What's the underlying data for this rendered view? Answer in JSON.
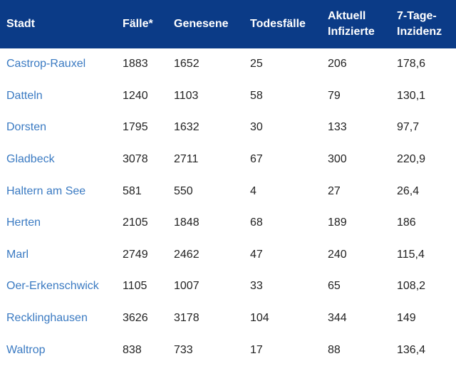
{
  "table": {
    "headers": [
      "Stadt",
      "Fälle*",
      "Genesene",
      "Todesfälle",
      "Aktuell Infizierte",
      "7-Tage-Inzidenz"
    ],
    "rows": [
      [
        "Castrop-Rauxel",
        "1883",
        "1652",
        "25",
        "206",
        "178,6"
      ],
      [
        "Datteln",
        "1240",
        "1103",
        "58",
        "79",
        "130,1"
      ],
      [
        "Dorsten",
        "1795",
        "1632",
        "30",
        "133",
        "97,7"
      ],
      [
        "Gladbeck",
        "3078",
        "2711",
        "67",
        "300",
        "220,9"
      ],
      [
        "Haltern am See",
        "581",
        "550",
        "4",
        "27",
        "26,4"
      ],
      [
        "Herten",
        "2105",
        "1848",
        "68",
        "189",
        "186"
      ],
      [
        "Marl",
        "2749",
        "2462",
        "47",
        "240",
        "115,4"
      ],
      [
        "Oer-Erkenschwick",
        "1105",
        "1007",
        "33",
        "65",
        "108,2"
      ],
      [
        "Recklinghausen",
        "3626",
        "3178",
        "104",
        "344",
        "149"
      ],
      [
        "Waltrop",
        "838",
        "733",
        "17",
        "88",
        "136,4"
      ]
    ]
  },
  "colors": {
    "header_bg": "#0b3b87",
    "header_text": "#ffffff",
    "city_link": "#3a7ac2",
    "cell_text": "#222222"
  }
}
